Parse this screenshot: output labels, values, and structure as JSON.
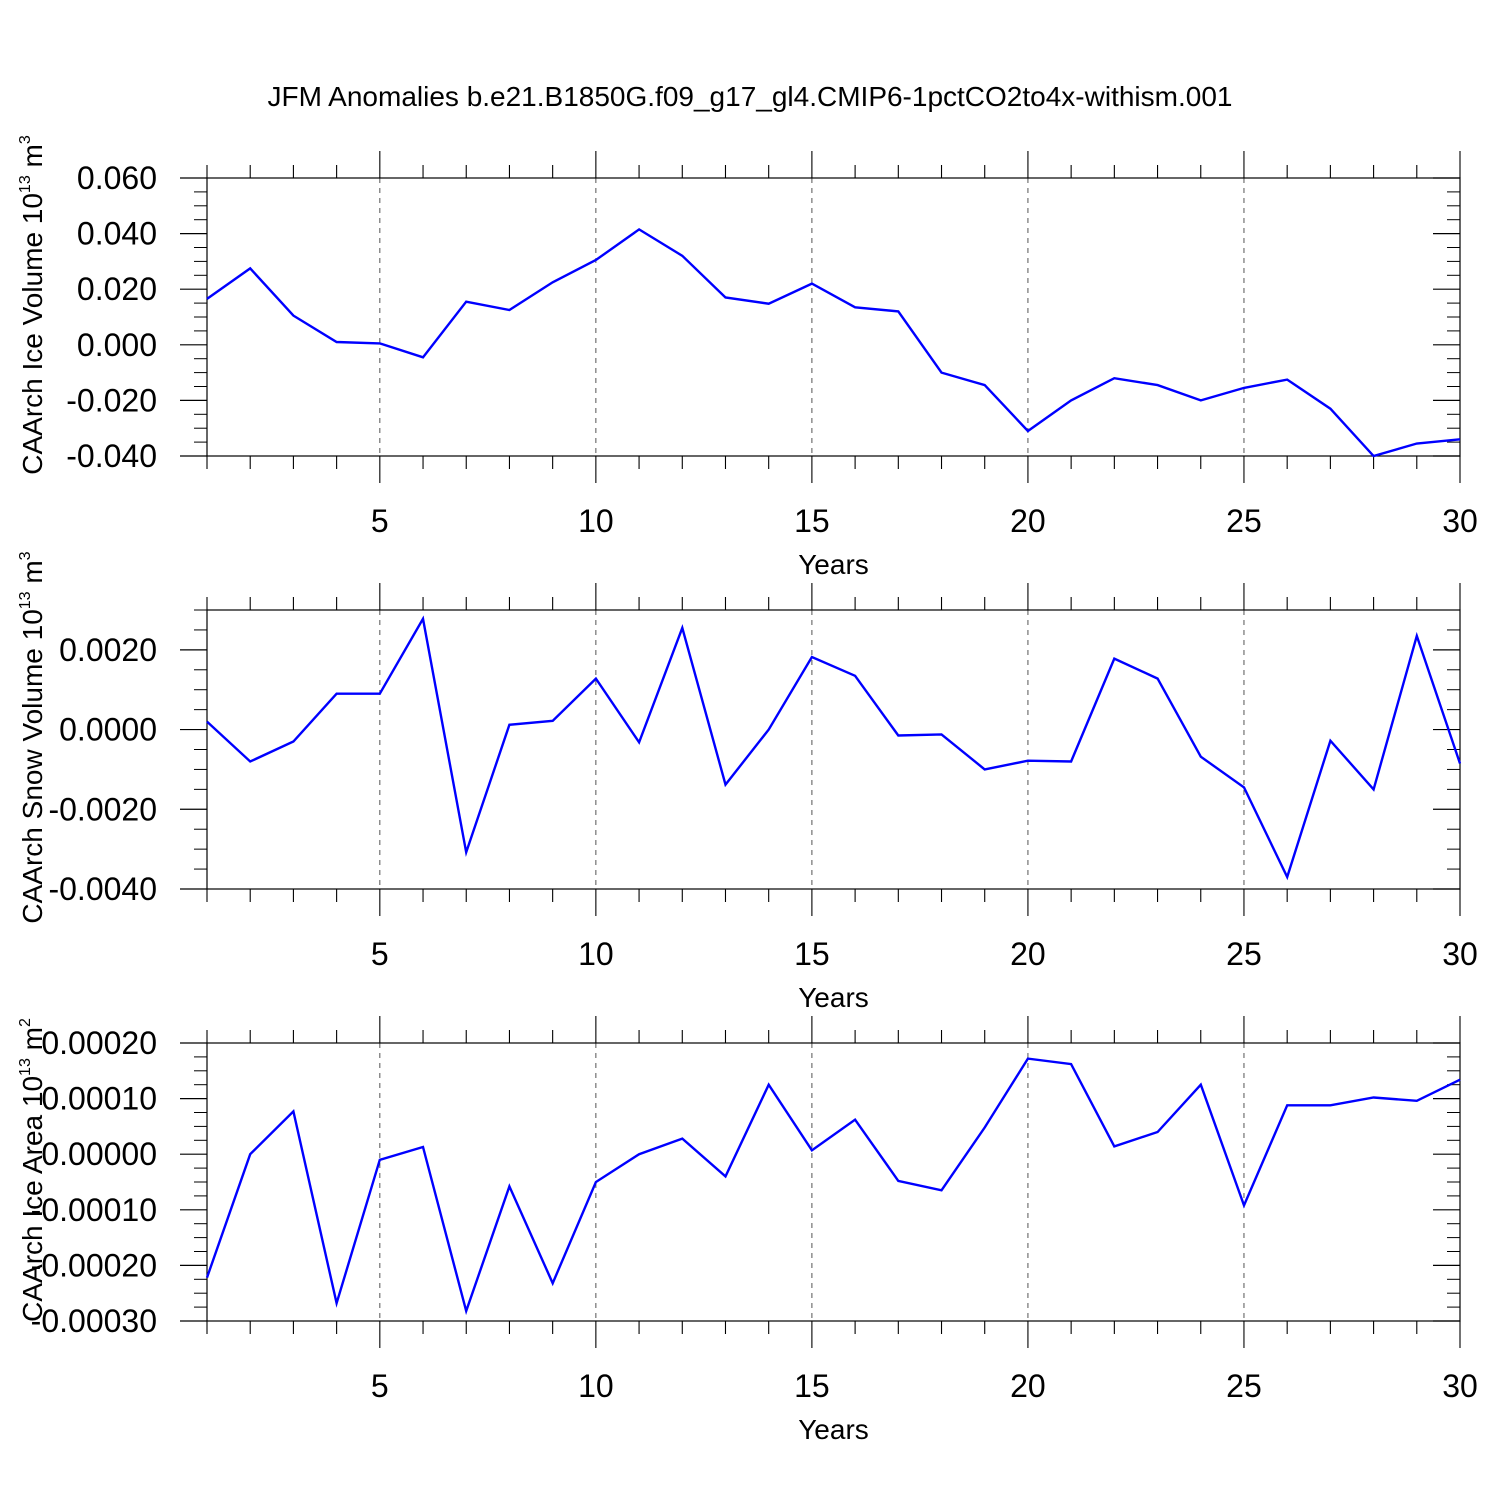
{
  "figure": {
    "title": "JFM Anomalies b.e21.B1850G.f09_g17_gl4.CMIP6-1pctCO2to4x-withism.001",
    "line_color": "#0000ff"
  },
  "chart_data": [
    {
      "type": "line",
      "ylabel": "CAArch Ice Volume 10",
      "ylabel_exp": "13",
      "ylabel_unit": "m",
      "ylabel_unit_exp": "3",
      "xlabel": "Years",
      "xlim": [
        1,
        30
      ],
      "ylim": [
        -0.04,
        0.06
      ],
      "xticks": [
        5,
        10,
        15,
        20,
        25,
        30
      ],
      "xtick_labels": [
        "5",
        "10",
        "15",
        "20",
        "25",
        "30"
      ],
      "yticks": [
        -0.04,
        -0.02,
        0.0,
        0.02,
        0.04,
        0.06
      ],
      "ytick_labels": [
        "-0.040",
        "-0.020",
        "0.000",
        "0.020",
        "0.040",
        "0.060"
      ],
      "ytick_minor_step": 0.005,
      "grid": "vertical dashed at major x ticks",
      "x": [
        1,
        2,
        3,
        4,
        5,
        6,
        7,
        8,
        9,
        10,
        11,
        12,
        13,
        14,
        15,
        16,
        17,
        18,
        19,
        20,
        21,
        22,
        23,
        24,
        25,
        26,
        27,
        28,
        29,
        30
      ],
      "series": [
        {
          "values": [
            0.0165,
            0.0275,
            0.0105,
            0.001,
            0.0005,
            -0.0045,
            0.0155,
            0.0125,
            0.0225,
            0.0305,
            0.0415,
            0.032,
            0.017,
            0.0148,
            0.022,
            0.0135,
            0.012,
            -0.01,
            -0.0145,
            -0.031,
            -0.02,
            -0.012,
            -0.0145,
            -0.02,
            -0.0155,
            -0.0125,
            -0.023,
            -0.04,
            -0.0355,
            -0.034
          ]
        }
      ]
    },
    {
      "type": "line",
      "ylabel": "CAArch Snow Volume 10",
      "ylabel_exp": "13",
      "ylabel_unit": "m",
      "ylabel_unit_exp": "3",
      "xlabel": "Years",
      "xlim": [
        1,
        30
      ],
      "ylim": [
        -0.004,
        0.003
      ],
      "xticks": [
        5,
        10,
        15,
        20,
        25,
        30
      ],
      "xtick_labels": [
        "5",
        "10",
        "15",
        "20",
        "25",
        "30"
      ],
      "yticks": [
        -0.004,
        -0.002,
        0.0,
        0.002
      ],
      "ytick_labels": [
        "-0.0040",
        "-0.0020",
        "0.0000",
        "0.0020"
      ],
      "ytick_minor_step": 0.0005,
      "grid": "vertical dashed at major x ticks",
      "x": [
        1,
        2,
        3,
        4,
        5,
        6,
        7,
        8,
        9,
        10,
        11,
        12,
        13,
        14,
        15,
        16,
        17,
        18,
        19,
        20,
        21,
        22,
        23,
        24,
        25,
        26,
        27,
        28,
        29,
        30
      ],
      "series": [
        {
          "values": [
            0.0002,
            -0.0008,
            -0.0003,
            0.0009,
            0.0009,
            0.00278,
            -0.00308,
            0.00012,
            0.00022,
            0.00128,
            -0.00032,
            0.00255,
            -0.00138,
            0.0,
            0.00182,
            0.00135,
            -0.00015,
            -0.00012,
            -0.001,
            -0.00078,
            -0.0008,
            0.00178,
            0.00128,
            -0.00068,
            -0.00145,
            -0.0037,
            -0.00028,
            -0.0015,
            0.00235,
            -0.00085
          ]
        }
      ]
    },
    {
      "type": "line",
      "ylabel": "CAArch Ice Area 10",
      "ylabel_exp": "13",
      "ylabel_unit": "m",
      "ylabel_unit_exp": "2",
      "xlabel": "Years",
      "xlim": [
        1,
        30
      ],
      "ylim": [
        -0.0003,
        0.0002
      ],
      "xticks": [
        5,
        10,
        15,
        20,
        25,
        30
      ],
      "xtick_labels": [
        "5",
        "10",
        "15",
        "20",
        "25",
        "30"
      ],
      "yticks": [
        -0.0003,
        -0.0002,
        -0.0001,
        0.0,
        0.0001,
        0.0002
      ],
      "ytick_labels": [
        "-0.00030",
        "-0.00020",
        "-0.00010",
        "0.00000",
        "0.00010",
        "0.00020"
      ],
      "ytick_minor_step": 2.5e-05,
      "grid": "vertical dashed at major x ticks",
      "x": [
        1,
        2,
        3,
        4,
        5,
        6,
        7,
        8,
        9,
        10,
        11,
        12,
        13,
        14,
        15,
        16,
        17,
        18,
        19,
        20,
        21,
        22,
        23,
        24,
        25,
        26,
        27,
        28,
        29,
        30
      ],
      "series": [
        {
          "values": [
            -0.000222,
            0.0,
            7.7e-05,
            -0.000268,
            -1e-05,
            1.3e-05,
            -0.000282,
            -5.8e-05,
            -0.000232,
            -5e-05,
            0.0,
            2.8e-05,
            -4e-05,
            0.000125,
            7e-06,
            6.2e-05,
            -4.8e-05,
            -6.5e-05,
            4.8e-05,
            0.000172,
            0.000162,
            1.4e-05,
            4e-05,
            0.000125,
            -9.2e-05,
            8.8e-05,
            8.8e-05,
            0.000102,
            9.6e-05,
            0.000134
          ]
        }
      ]
    }
  ]
}
